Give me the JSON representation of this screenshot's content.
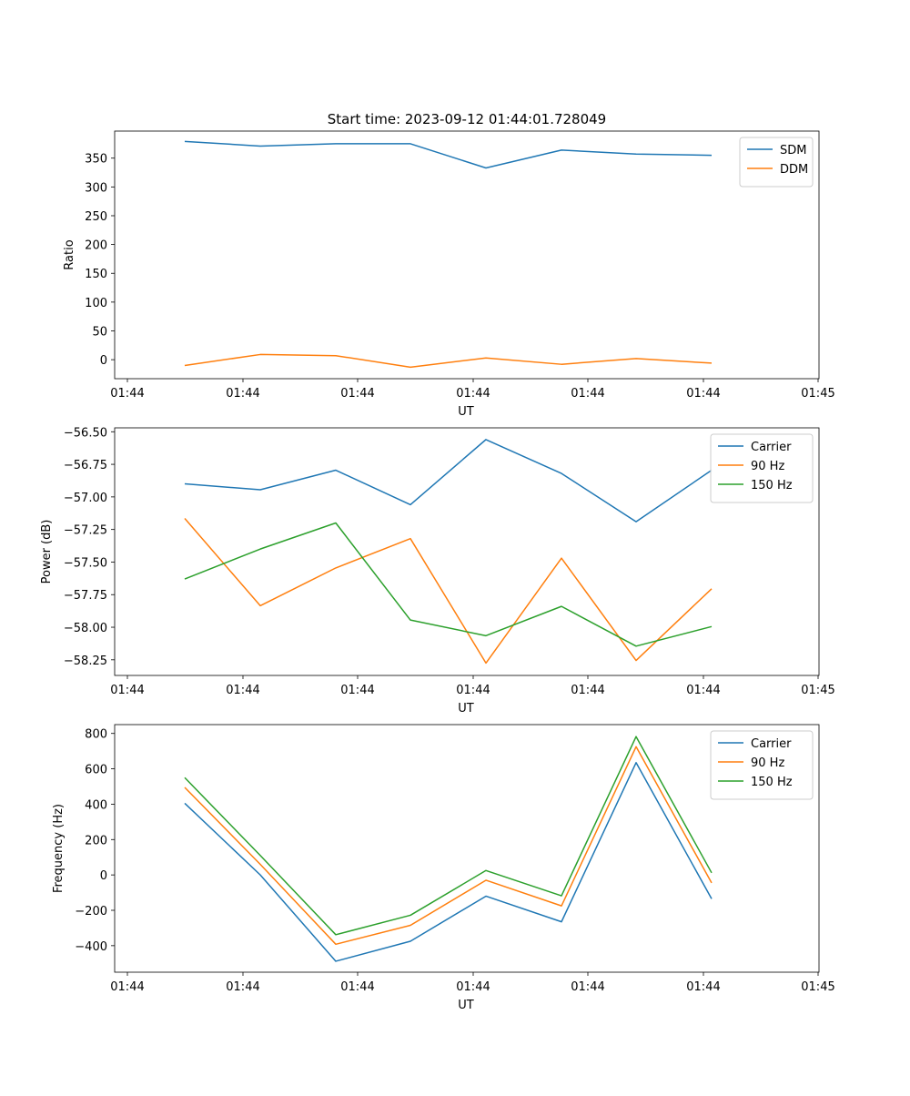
{
  "figure_title": "Start time: 2023-09-12 01:44:01.728049",
  "chart_data": [
    {
      "type": "line",
      "title": "Start time: 2023-09-12 01:44:01.728049",
      "xlabel": "UT",
      "ylabel": "Ratio",
      "x_tick_labels": [
        "01:44",
        "01:44",
        "01:44",
        "01:44",
        "01:44",
        "01:44",
        "01:44"
      ],
      "x_end_tick_label": "01:45",
      "ylim": [
        -33,
        397
      ],
      "y_ticks": [
        0,
        50,
        100,
        150,
        200,
        250,
        300,
        350
      ],
      "y_tick_labels": [
        "0",
        "50",
        "100",
        "150",
        "200",
        "250",
        "300",
        "350"
      ],
      "legend_position": "top-right",
      "series": [
        {
          "name": "SDM",
          "color": "#1f77b4",
          "values": [
            379,
            371,
            375,
            375,
            333,
            364,
            357,
            355
          ]
        },
        {
          "name": "DDM",
          "color": "#ff7f0e",
          "values": [
            -10,
            9,
            7,
            -13,
            3,
            -8,
            2,
            -6
          ]
        }
      ]
    },
    {
      "type": "line",
      "xlabel": "UT",
      "ylabel": "Power (dB)",
      "x_tick_labels": [
        "01:44",
        "01:44",
        "01:44",
        "01:44",
        "01:44",
        "01:44",
        "01:44"
      ],
      "x_end_tick_label": "01:45",
      "ylim": [
        -58.37,
        -56.47
      ],
      "y_ticks": [
        -58.25,
        -58.0,
        -57.75,
        -57.5,
        -57.25,
        -57.0,
        -56.75,
        -56.5
      ],
      "y_tick_labels": [
        "−58.25",
        "−58.00",
        "−57.75",
        "−57.50",
        "−57.25",
        "−57.00",
        "−56.75",
        "−56.50"
      ],
      "legend_position": "top-right",
      "series": [
        {
          "name": "Carrier",
          "color": "#1f77b4",
          "values": [
            -56.9,
            -56.945,
            -56.795,
            -57.06,
            -56.56,
            -56.82,
            -57.19,
            -56.795
          ]
        },
        {
          "name": "90 Hz",
          "color": "#ff7f0e",
          "values": [
            -57.165,
            -57.835,
            -57.545,
            -57.32,
            -58.275,
            -57.47,
            -58.255,
            -57.705
          ]
        },
        {
          "name": "150 Hz",
          "color": "#2ca02c",
          "values": [
            -57.63,
            -57.4,
            -57.2,
            -57.945,
            -58.065,
            -57.84,
            -58.145,
            -57.995
          ]
        }
      ]
    },
    {
      "type": "line",
      "xlabel": "UT",
      "ylabel": "Frequency (Hz)",
      "x_tick_labels": [
        "01:44",
        "01:44",
        "01:44",
        "01:44",
        "01:44",
        "01:44",
        "01:44"
      ],
      "x_end_tick_label": "01:45",
      "ylim": [
        -550,
        850
      ],
      "y_ticks": [
        -400,
        -200,
        0,
        200,
        400,
        600,
        800
      ],
      "y_tick_labels": [
        "−400",
        "−200",
        "0",
        "200",
        "400",
        "600",
        "800"
      ],
      "legend_position": "top-right",
      "series": [
        {
          "name": "Carrier",
          "color": "#1f77b4",
          "values": [
            405,
            0,
            -488,
            -375,
            -120,
            -265,
            635,
            -135
          ]
        },
        {
          "name": "90 Hz",
          "color": "#ff7f0e",
          "values": [
            495,
            60,
            -392,
            -285,
            -30,
            -175,
            725,
            -45
          ]
        },
        {
          "name": "150 Hz",
          "color": "#2ca02c",
          "values": [
            550,
            110,
            -338,
            -228,
            25,
            -118,
            782,
            12
          ]
        }
      ]
    }
  ]
}
